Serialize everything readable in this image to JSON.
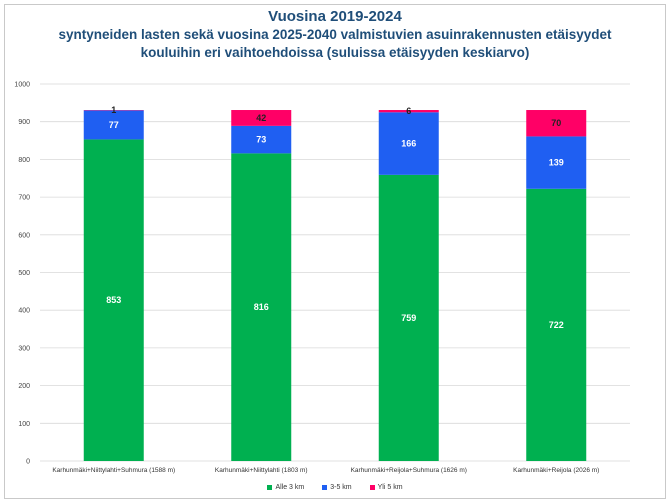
{
  "title": "Vuosina 2019-2024",
  "subtitle_lines": [
    "syntyneiden lasten sekä vuosina 2025-2040 valmistuvien asuinrakennusten etäisyydet",
    "kouluihin eri vaihtoehdoissa (suluissa etäisyyden keskiarvo)"
  ],
  "chart_data": {
    "type": "bar",
    "stacked": true,
    "title": "Vuosina 2019-2024",
    "subtitle": "syntyneiden lasten sekä vuosina 2025-2040 valmistuvien asuinrakennusten etäisyydet kouluihin eri vaihtoehdoissa (suluissa etäisyyden keskiarvo)",
    "categories": [
      "Karhunmäki+Niittylahti+Suhmura (1588 m)",
      "Karhunmäki+Niittylahti (1803 m)",
      "Karhunmäki+Reijola+Suhmura (1626 m)",
      "Karhunmäki+Reijola (2026 m)"
    ],
    "series": [
      {
        "name": "Alle 3 km",
        "color": "#00b050",
        "values": [
          853,
          816,
          759,
          722
        ]
      },
      {
        "name": "3-5 km",
        "color": "#1f5ff2",
        "values": [
          77,
          73,
          166,
          139
        ]
      },
      {
        "name": "Yli 5 km",
        "color": "#ff0066",
        "values": [
          1,
          42,
          6,
          70
        ]
      }
    ],
    "ylim": [
      0,
      1000
    ],
    "yticks": [
      0,
      100,
      200,
      300,
      400,
      500,
      600,
      700,
      800,
      900,
      1000
    ],
    "grid": true,
    "legend": "bottom"
  }
}
